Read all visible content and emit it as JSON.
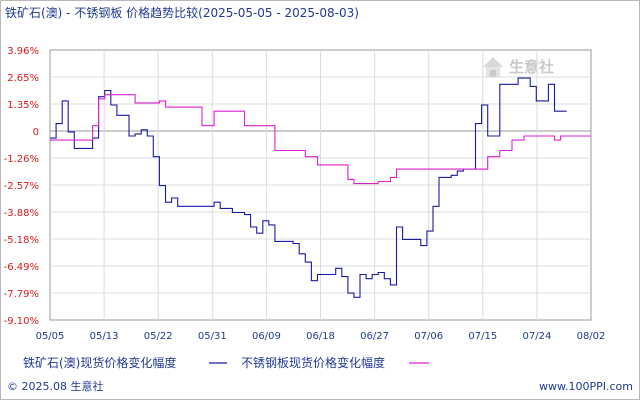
{
  "title": "铁矿石(澳) - 不锈钢板  价格趋势比较(2025-05-05 - 2025-08-03)",
  "watermark": "生意社",
  "footer": {
    "copyright": "© 2025.08 生意社",
    "url": "www.100PPI.com"
  },
  "colors": {
    "iron_ore": "#1a1aa8",
    "stainless": "#e020d0",
    "ytick": "#d81b1b",
    "text": "#1f3a93",
    "grid": "#dcdcdc",
    "zero_line": "#999999"
  },
  "chart_data": {
    "type": "line",
    "title": "铁矿石(澳) - 不锈钢板  价格趋势比较(2025-05-05 - 2025-08-03)",
    "x_ticks": [
      "05/05",
      "05/13",
      "05/22",
      "05/31",
      "06/09",
      "06/18",
      "06/27",
      "07/06",
      "07/15",
      "07/24",
      "08/02"
    ],
    "y_ticks": [
      "3.96%",
      "2.65%",
      "1.35%",
      "0",
      "-1.26%",
      "-2.57%",
      "-3.88%",
      "-5.18%",
      "-6.49%",
      "-7.79%",
      "-9.10%"
    ],
    "ylim": [
      -9.1,
      3.96
    ],
    "grid": true,
    "legend_position": "bottom",
    "series": [
      {
        "name": "铁矿石(澳)现货价格变化幅度",
        "color": "#1a1aa8",
        "points": [
          [
            "2025-05-05",
            -0.3
          ],
          [
            "2025-05-06",
            0.4
          ],
          [
            "2025-05-07",
            1.5
          ],
          [
            "2025-05-08",
            0.0
          ],
          [
            "2025-05-09",
            -0.8
          ],
          [
            "2025-05-10",
            -0.8
          ],
          [
            "2025-05-11",
            -0.8
          ],
          [
            "2025-05-12",
            -0.3
          ],
          [
            "2025-05-13",
            1.7
          ],
          [
            "2025-05-14",
            2.0
          ],
          [
            "2025-05-15",
            1.3
          ],
          [
            "2025-05-16",
            0.8
          ],
          [
            "2025-05-17",
            0.8
          ],
          [
            "2025-05-18",
            -0.2
          ],
          [
            "2025-05-19",
            -0.1
          ],
          [
            "2025-05-20",
            0.1
          ],
          [
            "2025-05-21",
            -0.2
          ],
          [
            "2025-05-22",
            -1.2
          ],
          [
            "2025-05-23",
            -2.6
          ],
          [
            "2025-05-24",
            -3.4
          ],
          [
            "2025-05-25",
            -3.2
          ],
          [
            "2025-05-26",
            -3.6
          ],
          [
            "2025-05-27",
            -3.6
          ],
          [
            "2025-05-28",
            -3.6
          ],
          [
            "2025-05-29",
            -3.6
          ],
          [
            "2025-05-30",
            -3.6
          ],
          [
            "2025-05-31",
            -3.6
          ],
          [
            "2025-06-01",
            -3.4
          ],
          [
            "2025-06-02",
            -3.7
          ],
          [
            "2025-06-03",
            -3.7
          ],
          [
            "2025-06-04",
            -3.9
          ],
          [
            "2025-06-05",
            -3.9
          ],
          [
            "2025-06-06",
            -4.0
          ],
          [
            "2025-06-07",
            -4.6
          ],
          [
            "2025-06-08",
            -4.9
          ],
          [
            "2025-06-09",
            -4.3
          ],
          [
            "2025-06-10",
            -4.5
          ],
          [
            "2025-06-11",
            -5.3
          ],
          [
            "2025-06-12",
            -5.3
          ],
          [
            "2025-06-13",
            -5.3
          ],
          [
            "2025-06-14",
            -5.4
          ],
          [
            "2025-06-15",
            -5.9
          ],
          [
            "2025-06-16",
            -6.3
          ],
          [
            "2025-06-17",
            -7.2
          ],
          [
            "2025-06-18",
            -6.9
          ],
          [
            "2025-06-19",
            -6.9
          ],
          [
            "2025-06-20",
            -6.9
          ],
          [
            "2025-06-21",
            -6.6
          ],
          [
            "2025-06-22",
            -7.0
          ],
          [
            "2025-06-23",
            -7.8
          ],
          [
            "2025-06-24",
            -8.0
          ],
          [
            "2025-06-25",
            -6.9
          ],
          [
            "2025-06-26",
            -7.1
          ],
          [
            "2025-06-27",
            -6.9
          ],
          [
            "2025-06-28",
            -6.8
          ],
          [
            "2025-06-29",
            -7.1
          ],
          [
            "2025-06-30",
            -7.4
          ],
          [
            "2025-07-01",
            -4.6
          ],
          [
            "2025-07-02",
            -5.2
          ],
          [
            "2025-07-03",
            -5.2
          ],
          [
            "2025-07-04",
            -5.2
          ],
          [
            "2025-07-05",
            -5.5
          ],
          [
            "2025-07-06",
            -4.8
          ],
          [
            "2025-07-07",
            -3.6
          ],
          [
            "2025-07-08",
            -2.2
          ],
          [
            "2025-07-09",
            -2.2
          ],
          [
            "2025-07-10",
            -2.1
          ],
          [
            "2025-07-11",
            -1.9
          ],
          [
            "2025-07-12",
            -1.8
          ],
          [
            "2025-07-13",
            -1.8
          ],
          [
            "2025-07-14",
            0.4
          ],
          [
            "2025-07-15",
            1.3
          ],
          [
            "2025-07-16",
            -0.2
          ],
          [
            "2025-07-17",
            -0.2
          ],
          [
            "2025-07-18",
            2.3
          ],
          [
            "2025-07-19",
            2.3
          ],
          [
            "2025-07-20",
            2.3
          ],
          [
            "2025-07-21",
            2.6
          ],
          [
            "2025-07-22",
            2.6
          ],
          [
            "2025-07-23",
            2.2
          ],
          [
            "2025-07-24",
            1.5
          ],
          [
            "2025-07-25",
            1.5
          ],
          [
            "2025-07-26",
            2.3
          ],
          [
            "2025-07-27",
            1.0
          ],
          [
            "2025-07-28",
            1.0
          ],
          [
            "2025-07-29",
            1.0
          ]
        ]
      },
      {
        "name": "不锈钢板现货价格变化幅度",
        "color": "#e020d0",
        "points": [
          [
            "2025-05-05",
            -0.4
          ],
          [
            "2025-05-06",
            -0.4
          ],
          [
            "2025-05-07",
            -0.4
          ],
          [
            "2025-05-08",
            -0.4
          ],
          [
            "2025-05-09",
            -0.4
          ],
          [
            "2025-05-10",
            -0.4
          ],
          [
            "2025-05-11",
            -0.4
          ],
          [
            "2025-05-12",
            0.3
          ],
          [
            "2025-05-13",
            1.6
          ],
          [
            "2025-05-14",
            1.8
          ],
          [
            "2025-05-15",
            1.8
          ],
          [
            "2025-05-16",
            1.8
          ],
          [
            "2025-05-17",
            1.8
          ],
          [
            "2025-05-18",
            1.8
          ],
          [
            "2025-05-19",
            1.4
          ],
          [
            "2025-05-20",
            1.4
          ],
          [
            "2025-05-21",
            1.4
          ],
          [
            "2025-05-22",
            1.4
          ],
          [
            "2025-05-23",
            1.5
          ],
          [
            "2025-05-24",
            1.2
          ],
          [
            "2025-05-25",
            1.2
          ],
          [
            "2025-05-26",
            1.2
          ],
          [
            "2025-05-27",
            1.2
          ],
          [
            "2025-05-28",
            1.2
          ],
          [
            "2025-05-29",
            1.2
          ],
          [
            "2025-05-30",
            0.3
          ],
          [
            "2025-05-31",
            0.3
          ],
          [
            "2025-06-01",
            1.0
          ],
          [
            "2025-06-02",
            1.0
          ],
          [
            "2025-06-03",
            1.0
          ],
          [
            "2025-06-04",
            1.0
          ],
          [
            "2025-06-05",
            1.0
          ],
          [
            "2025-06-06",
            0.3
          ],
          [
            "2025-06-07",
            0.3
          ],
          [
            "2025-06-08",
            0.3
          ],
          [
            "2025-06-09",
            0.3
          ],
          [
            "2025-06-10",
            0.3
          ],
          [
            "2025-06-11",
            -0.9
          ],
          [
            "2025-06-12",
            -0.9
          ],
          [
            "2025-06-13",
            -0.9
          ],
          [
            "2025-06-14",
            -0.9
          ],
          [
            "2025-06-15",
            -0.9
          ],
          [
            "2025-06-16",
            -1.2
          ],
          [
            "2025-06-17",
            -1.2
          ],
          [
            "2025-06-18",
            -1.6
          ],
          [
            "2025-06-19",
            -1.6
          ],
          [
            "2025-06-20",
            -1.6
          ],
          [
            "2025-06-21",
            -1.6
          ],
          [
            "2025-06-22",
            -1.6
          ],
          [
            "2025-06-23",
            -2.3
          ],
          [
            "2025-06-24",
            -2.5
          ],
          [
            "2025-06-25",
            -2.5
          ],
          [
            "2025-06-26",
            -2.5
          ],
          [
            "2025-06-27",
            -2.5
          ],
          [
            "2025-06-28",
            -2.4
          ],
          [
            "2025-06-29",
            -2.4
          ],
          [
            "2025-06-30",
            -2.2
          ],
          [
            "2025-07-01",
            -1.8
          ],
          [
            "2025-07-02",
            -1.8
          ],
          [
            "2025-07-03",
            -1.8
          ],
          [
            "2025-07-04",
            -1.8
          ],
          [
            "2025-07-05",
            -1.8
          ],
          [
            "2025-07-06",
            -1.8
          ],
          [
            "2025-07-07",
            -1.8
          ],
          [
            "2025-07-08",
            -1.8
          ],
          [
            "2025-07-09",
            -1.8
          ],
          [
            "2025-07-10",
            -1.8
          ],
          [
            "2025-07-11",
            -1.8
          ],
          [
            "2025-07-12",
            -1.8
          ],
          [
            "2025-07-13",
            -1.8
          ],
          [
            "2025-07-14",
            -1.8
          ],
          [
            "2025-07-15",
            -1.8
          ],
          [
            "2025-07-16",
            -1.2
          ],
          [
            "2025-07-17",
            -1.2
          ],
          [
            "2025-07-18",
            -0.9
          ],
          [
            "2025-07-19",
            -0.9
          ],
          [
            "2025-07-20",
            -0.4
          ],
          [
            "2025-07-21",
            -0.4
          ],
          [
            "2025-07-22",
            -0.2
          ],
          [
            "2025-07-23",
            -0.2
          ],
          [
            "2025-07-24",
            -0.2
          ],
          [
            "2025-07-25",
            -0.2
          ],
          [
            "2025-07-26",
            -0.2
          ],
          [
            "2025-07-27",
            -0.4
          ],
          [
            "2025-07-28",
            -0.2
          ],
          [
            "2025-07-29",
            -0.2
          ],
          [
            "2025-07-30",
            -0.2
          ],
          [
            "2025-07-31",
            -0.2
          ],
          [
            "2025-08-01",
            -0.2
          ],
          [
            "2025-08-02",
            -0.2
          ]
        ]
      }
    ]
  }
}
